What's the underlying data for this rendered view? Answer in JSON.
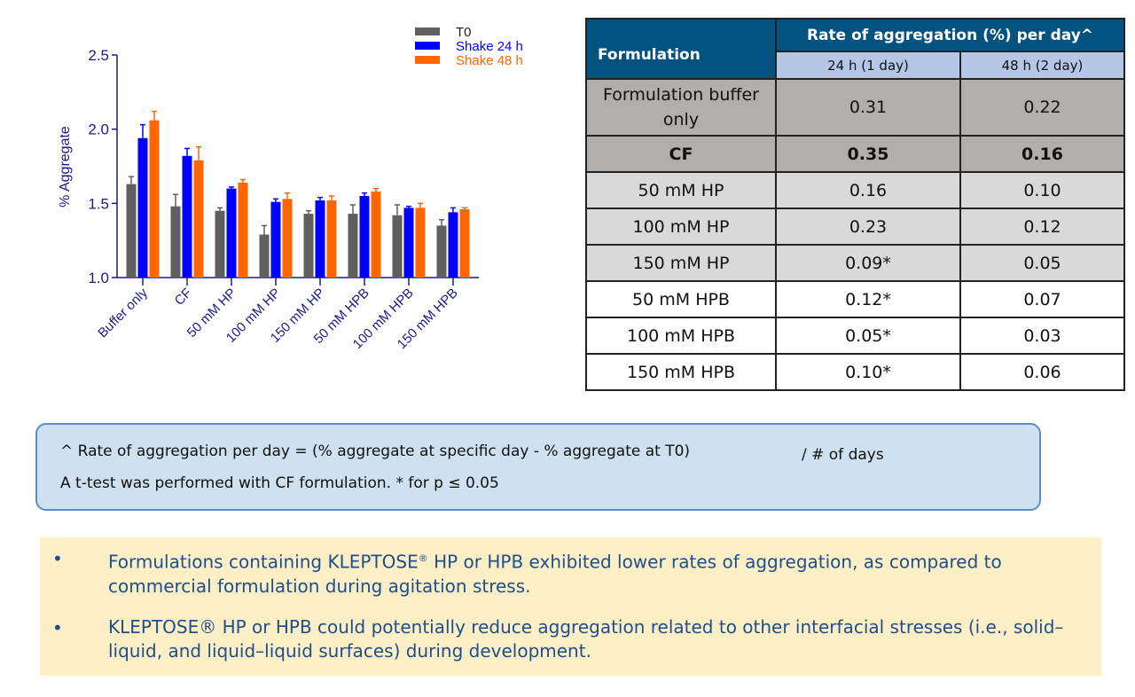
{
  "chart_data": {
    "type": "bar",
    "ylabel": "% Aggregate",
    "xlabel": "",
    "ylim": [
      1.0,
      2.5
    ],
    "yticks": [
      "1.0",
      "1.5",
      "2.0",
      "2.5"
    ],
    "categories": [
      "Buffer only",
      "CF",
      "50 mM HP",
      "100 mM HP",
      "150 mM HP",
      "50 mM HPB",
      "100 mM HPB",
      "150 mM HPB"
    ],
    "legend_position": "top-right",
    "series": [
      {
        "name": "T0",
        "color": "#5f5f5f",
        "values": [
          1.63,
          1.48,
          1.45,
          1.29,
          1.43,
          1.43,
          1.42,
          1.35
        ],
        "errors": [
          0.05,
          0.08,
          0.02,
          0.06,
          0.02,
          0.06,
          0.07,
          0.04
        ]
      },
      {
        "name": "Shake 24 h",
        "color": "#0000ff",
        "values": [
          1.94,
          1.82,
          1.6,
          1.51,
          1.52,
          1.55,
          1.47,
          1.44
        ],
        "errors": [
          0.09,
          0.05,
          0.01,
          0.02,
          0.02,
          0.02,
          0.01,
          0.03
        ]
      },
      {
        "name": "Shake 48 h",
        "color": "#ff6600",
        "values": [
          2.06,
          1.79,
          1.64,
          1.53,
          1.52,
          1.58,
          1.47,
          1.46
        ],
        "errors": [
          0.06,
          0.09,
          0.02,
          0.04,
          0.03,
          0.02,
          0.03,
          0.01
        ]
      }
    ]
  },
  "table": {
    "col_formulation": "Formulation",
    "col_group": "Rate of aggregation (%) per day^",
    "sub1": "24 h (1 day)",
    "sub2": "48 h (2 day)",
    "rows": [
      {
        "name": "Formulation buffer only",
        "d1": "0.31",
        "d2": "0.22"
      },
      {
        "name": "CF",
        "d1": "0.35",
        "d2": "0.16"
      },
      {
        "name": "50 mM HP",
        "d1": "0.16",
        "d2": "0.10"
      },
      {
        "name": "100 mM HP",
        "d1": "0.23",
        "d2": "0.12"
      },
      {
        "name": "150 mM HP",
        "d1": "0.09*",
        "d2": "0.05"
      },
      {
        "name": "50 mM HPB",
        "d1": "0.12*",
        "d2": "0.07"
      },
      {
        "name": "100 mM HPB",
        "d1": "0.05*",
        "d2": "0.03"
      },
      {
        "name": "150 mM HPB",
        "d1": "0.10*",
        "d2": "0.06"
      }
    ]
  },
  "note": {
    "line1": "^ Rate of aggregation per day  = (% aggregate at specific day  - % aggregate at T0)",
    "line1b": "/ # of days",
    "line2": "A t-test was performed with CF formulation. * for p ≤ 0.05"
  },
  "conclusions": {
    "bullet": "•",
    "b1a": "Formulations containing KLEPTOSE",
    "reg": "®",
    "b1b": " HP or HPB exhibited lower rates of aggregation, as compared to commercial formulation during agitation stress.",
    "b2": "KLEPTOSE® HP or HPB could potentially reduce aggregation related to other interfacial stresses (i.e., solid–liquid, and liquid–liquid surfaces) during development."
  }
}
